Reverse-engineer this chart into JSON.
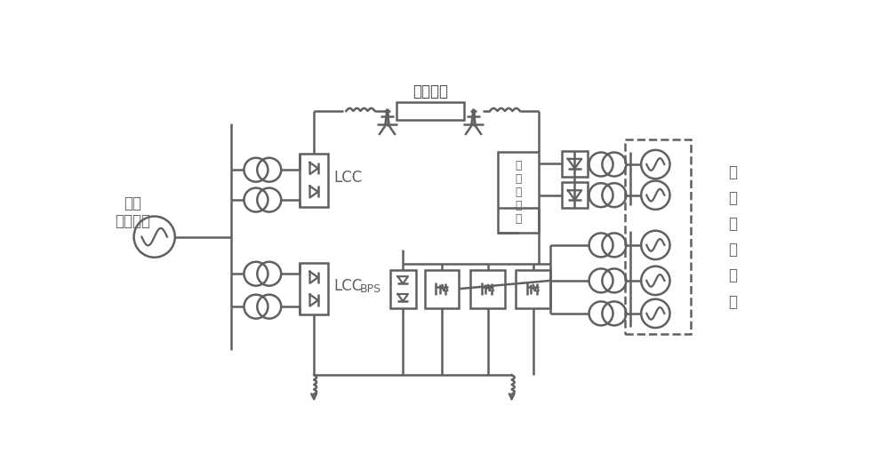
{
  "bg_color": "#ffffff",
  "lc": "#606060",
  "lw": 1.8,
  "title": "直流线路",
  "lcc_label": "LCC",
  "bps_label": "BPS",
  "send_label": "送端\n交流系统",
  "recv_label": "受\n端\n交\n流\n系\n统",
  "filter_label": "直\n流\n滤\n波\n器",
  "fig_w": 10.0,
  "fig_h": 5.28,
  "dpi": 100
}
